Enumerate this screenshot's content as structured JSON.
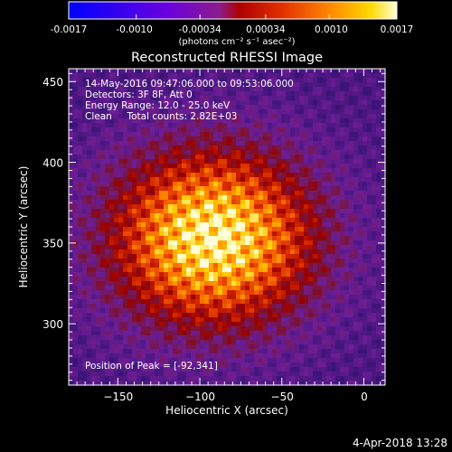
{
  "colorbar": {
    "tick_labels": [
      "-0.0017",
      "-0.0010",
      "-0.00034",
      "0.00034",
      "0.0010",
      "0.0017"
    ],
    "min": -0.0017,
    "max": 0.0017,
    "unit_label": "(photons cm⁻² s⁻¹ asec⁻²)"
  },
  "title": "Reconstructed RHESSI Image",
  "info": {
    "line1": "14-May-2016 09:47:06.000 to 09:53:06.000",
    "line2": "Detectors: 3F 8F, Att 0",
    "line3": "Energy Range: 12.0 - 25.0 keV",
    "line4": "Clean     Total counts: 2.82E+03"
  },
  "peak_text": "Position of Peak = [-92,341]",
  "xaxis": {
    "label": "Heliocentric X (arcsec)",
    "range": [
      -180,
      13
    ],
    "ticks": [
      -150,
      -100,
      -50,
      0
    ],
    "tick_labels": [
      "−150",
      "−100",
      "−50",
      "0"
    ]
  },
  "yaxis": {
    "label": "Heliocentric Y (arcsec)",
    "range": [
      262,
      458
    ],
    "ticks": [
      300,
      350,
      400,
      450
    ],
    "tick_labels": [
      "300",
      "350",
      "400",
      "450"
    ]
  },
  "peak": {
    "x": -92,
    "y": 341
  },
  "footer_date": "4-Apr-2018 13:28",
  "colors": {
    "background": "#000000",
    "foreground": "#ffffff"
  }
}
